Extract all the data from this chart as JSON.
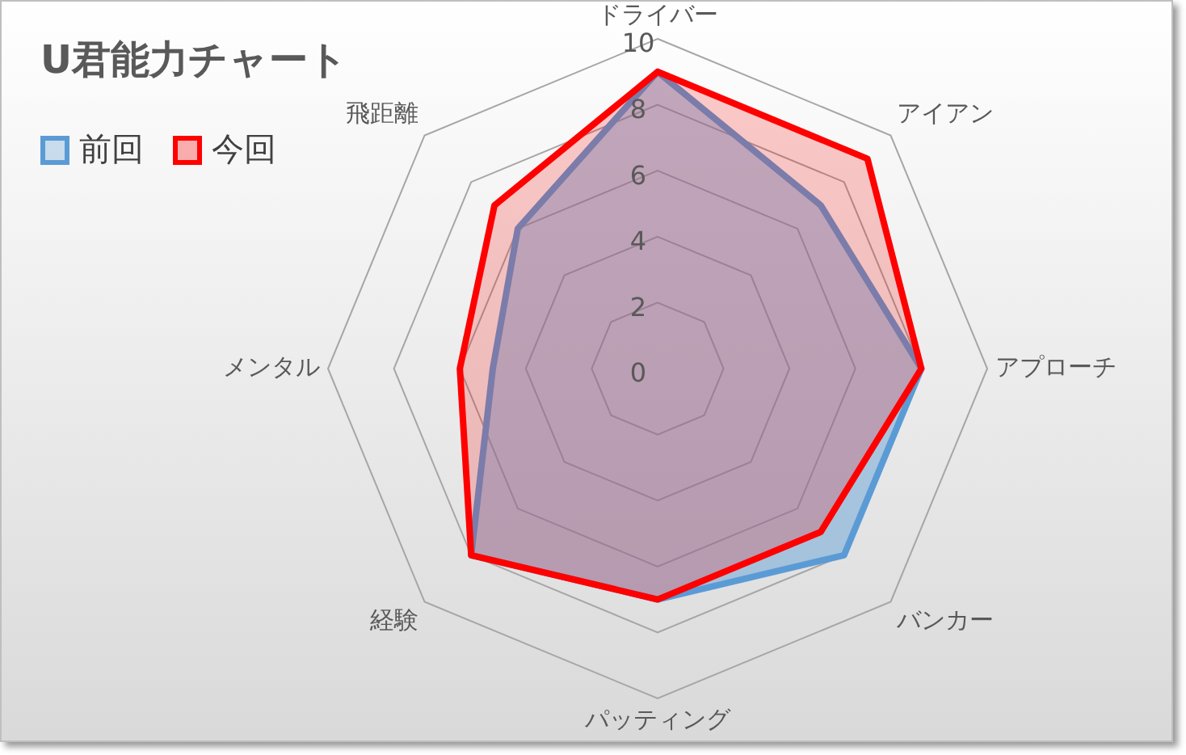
{
  "chart_data": {
    "type": "radar",
    "title": "U君能力チャート",
    "categories": [
      "ドライバー",
      "アイアン",
      "アプローチ",
      "バンカー",
      "パッティング",
      "経験",
      "メンタル",
      "飛距離"
    ],
    "series": [
      {
        "name": "前回",
        "color": "#5b9bd5",
        "values": [
          9,
          7,
          8,
          8,
          7,
          8,
          5,
          6
        ]
      },
      {
        "name": "今回",
        "color": "#ff0000",
        "values": [
          9,
          9,
          8,
          7,
          7,
          8,
          6,
          7
        ]
      }
    ],
    "ylim": [
      0,
      10
    ],
    "yticks": [
      0,
      2,
      4,
      6,
      8,
      10
    ],
    "grid": true,
    "legend": "top left"
  }
}
